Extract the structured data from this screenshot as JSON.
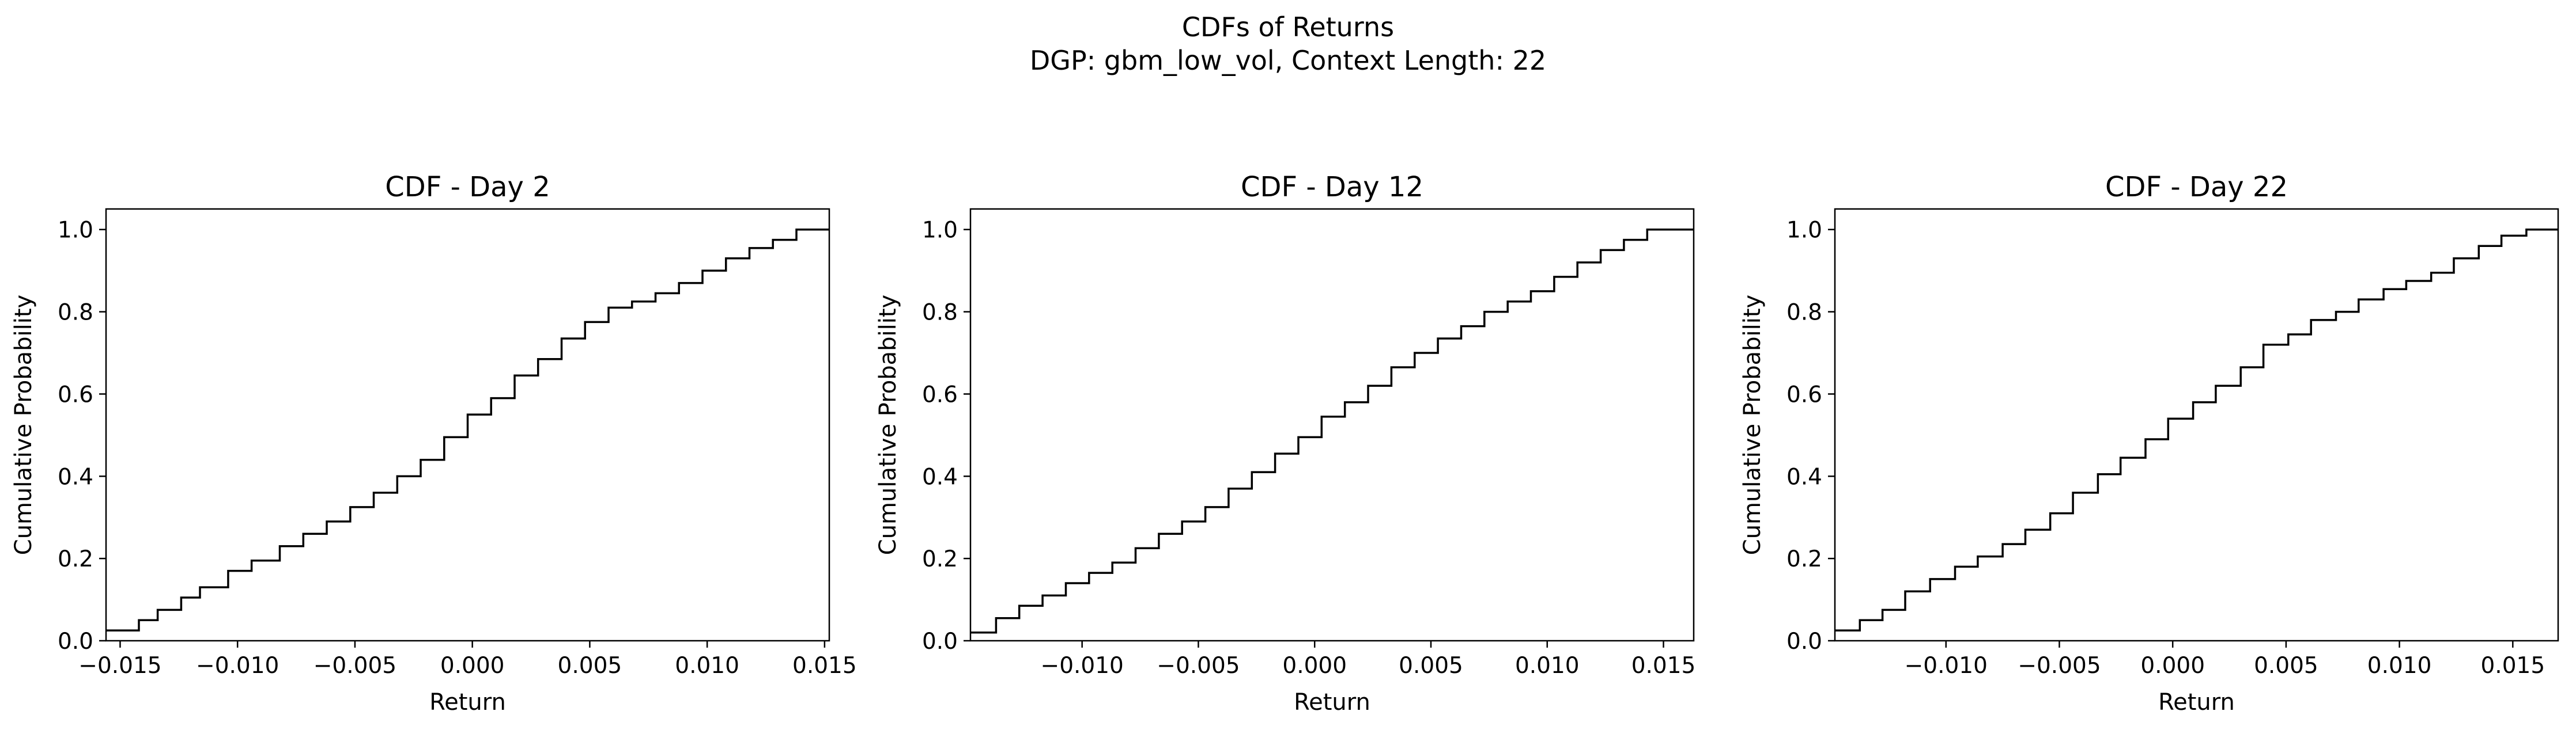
{
  "figure": {
    "title_line1": "CDFs of Returns",
    "title_line2": "DGP: gbm_low_vol, Context Length: 22"
  },
  "chart_data": [
    {
      "type": "line",
      "step": "post",
      "title": "CDF - Day 2",
      "xlabel": "Return",
      "ylabel": "Cumulative Probability",
      "xlim": [
        -0.0156,
        0.0152
      ],
      "ylim": [
        0,
        1.05
      ],
      "xticks": [
        -0.015,
        -0.01,
        -0.005,
        0.0,
        0.005,
        0.01,
        0.015
      ],
      "xtick_labels": [
        "−0.015",
        "−0.010",
        "−0.005",
        "0.000",
        "0.005",
        "0.010",
        "0.015"
      ],
      "yticks": [
        0.0,
        0.2,
        0.4,
        0.6,
        0.8,
        1.0
      ],
      "ytick_labels": [
        "0.0",
        "0.2",
        "0.4",
        "0.6",
        "0.8",
        "1.0"
      ],
      "grid": false,
      "color": "#000000",
      "series": [
        {
          "x": [
            -0.0156,
            -0.0142,
            -0.0134,
            -0.0124,
            -0.0116,
            -0.0104,
            -0.0094,
            -0.0082,
            -0.0072,
            -0.0062,
            -0.0052,
            -0.0042,
            -0.0032,
            -0.0022,
            -0.0012,
            -0.0002,
            0.0008,
            0.0018,
            0.0028,
            0.0038,
            0.0048,
            0.0058,
            0.0068,
            0.0078,
            0.0088,
            0.0098,
            0.0108,
            0.0118,
            0.0128,
            0.0138,
            0.0146,
            0.0152
          ],
          "y": [
            0.025,
            0.05,
            0.075,
            0.105,
            0.13,
            0.17,
            0.195,
            0.23,
            0.26,
            0.29,
            0.325,
            0.36,
            0.4,
            0.44,
            0.495,
            0.55,
            0.59,
            0.645,
            0.685,
            0.735,
            0.775,
            0.81,
            0.825,
            0.845,
            0.87,
            0.9,
            0.93,
            0.955,
            0.975,
            1.0,
            1.0,
            1.0
          ]
        }
      ]
    },
    {
      "type": "line",
      "step": "post",
      "title": "CDF - Day 12",
      "xlabel": "Return",
      "ylabel": "Cumulative Probability",
      "xlim": [
        -0.0148,
        0.0163
      ],
      "ylim": [
        0,
        1.05
      ],
      "xticks": [
        -0.01,
        -0.005,
        0.0,
        0.005,
        0.01,
        0.015
      ],
      "xtick_labels": [
        "−0.010",
        "−0.005",
        "0.000",
        "0.005",
        "0.010",
        "0.015"
      ],
      "yticks": [
        0.0,
        0.2,
        0.4,
        0.6,
        0.8,
        1.0
      ],
      "ytick_labels": [
        "0.0",
        "0.2",
        "0.4",
        "0.6",
        "0.8",
        "1.0"
      ],
      "grid": false,
      "color": "#000000",
      "series": [
        {
          "x": [
            -0.0148,
            -0.0137,
            -0.0127,
            -0.0117,
            -0.0107,
            -0.0097,
            -0.0087,
            -0.0077,
            -0.0067,
            -0.0057,
            -0.0047,
            -0.0037,
            -0.0027,
            -0.0017,
            -0.0007,
            0.0003,
            0.0013,
            0.0023,
            0.0033,
            0.0043,
            0.0053,
            0.0063,
            0.0073,
            0.0083,
            0.0093,
            0.0103,
            0.0113,
            0.0123,
            0.0133,
            0.0143,
            0.0153,
            0.0163
          ],
          "y": [
            0.02,
            0.055,
            0.085,
            0.11,
            0.14,
            0.165,
            0.19,
            0.225,
            0.26,
            0.29,
            0.325,
            0.37,
            0.41,
            0.455,
            0.495,
            0.545,
            0.58,
            0.62,
            0.665,
            0.7,
            0.735,
            0.765,
            0.8,
            0.825,
            0.85,
            0.885,
            0.92,
            0.95,
            0.975,
            1.0,
            1.0,
            1.0
          ]
        }
      ]
    },
    {
      "type": "line",
      "step": "post",
      "title": "CDF - Day 22",
      "xlabel": "Return",
      "ylabel": "Cumulative Probability",
      "xlim": [
        -0.0149,
        0.017
      ],
      "ylim": [
        0,
        1.05
      ],
      "xticks": [
        -0.01,
        -0.005,
        0.0,
        0.005,
        0.01,
        0.015
      ],
      "xtick_labels": [
        "−0.010",
        "−0.005",
        "0.000",
        "0.005",
        "0.010",
        "0.015"
      ],
      "yticks": [
        0.0,
        0.2,
        0.4,
        0.6,
        0.8,
        1.0
      ],
      "ytick_labels": [
        "0.0",
        "0.2",
        "0.4",
        "0.6",
        "0.8",
        "1.0"
      ],
      "grid": false,
      "color": "#000000",
      "series": [
        {
          "x": [
            -0.0149,
            -0.0138,
            -0.0128,
            -0.0118,
            -0.0107,
            -0.0096,
            -0.0086,
            -0.0075,
            -0.0065,
            -0.0054,
            -0.0044,
            -0.0033,
            -0.0023,
            -0.0012,
            -0.0002,
            0.0009,
            0.0019,
            0.003,
            0.004,
            0.0051,
            0.0061,
            0.0072,
            0.0082,
            0.0093,
            0.0103,
            0.0114,
            0.0124,
            0.0135,
            0.0145,
            0.0156,
            0.0165,
            0.017
          ],
          "y": [
            0.025,
            0.05,
            0.075,
            0.12,
            0.15,
            0.18,
            0.205,
            0.235,
            0.27,
            0.31,
            0.36,
            0.405,
            0.445,
            0.49,
            0.54,
            0.58,
            0.62,
            0.665,
            0.72,
            0.745,
            0.78,
            0.8,
            0.83,
            0.855,
            0.875,
            0.895,
            0.93,
            0.96,
            0.985,
            1.0,
            1.0,
            1.0
          ]
        }
      ]
    }
  ]
}
